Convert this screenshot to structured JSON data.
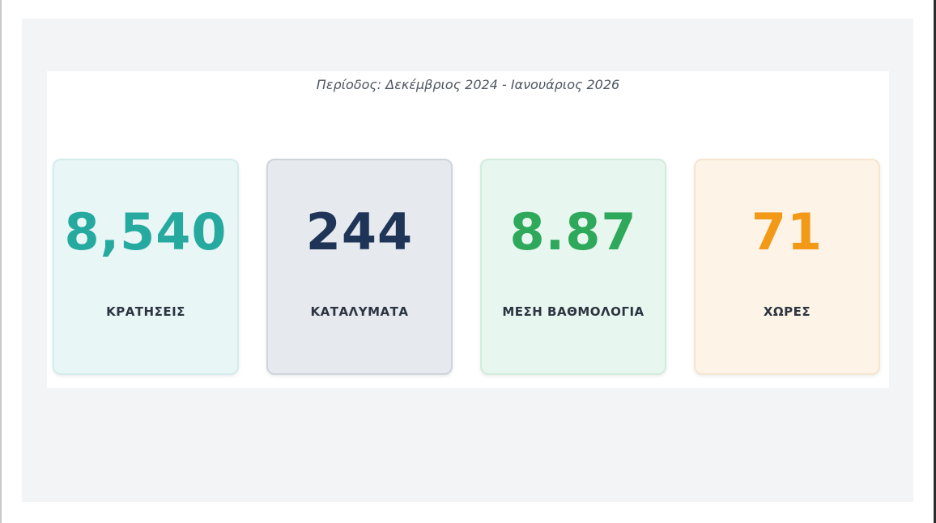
{
  "period_label": "Περίοδος: Δεκέμβριος 2024 - Ιανουάριος 2026",
  "stats": [
    {
      "value": "8,540",
      "label": "ΚΡΑΤΗΣΕΙΣ",
      "color": "#26aaa0"
    },
    {
      "value": "244",
      "label": "ΚΑΤΑΛΥΜΑΤΑ",
      "color": "#1f3557"
    },
    {
      "value": "8.87",
      "label": "ΜΕΣΗ ΒΑΘΜΟΛΟΓΙΑ",
      "color": "#2ea85a"
    },
    {
      "value": "71",
      "label": "ΧΩΡΕΣ",
      "color": "#f29a18"
    }
  ]
}
